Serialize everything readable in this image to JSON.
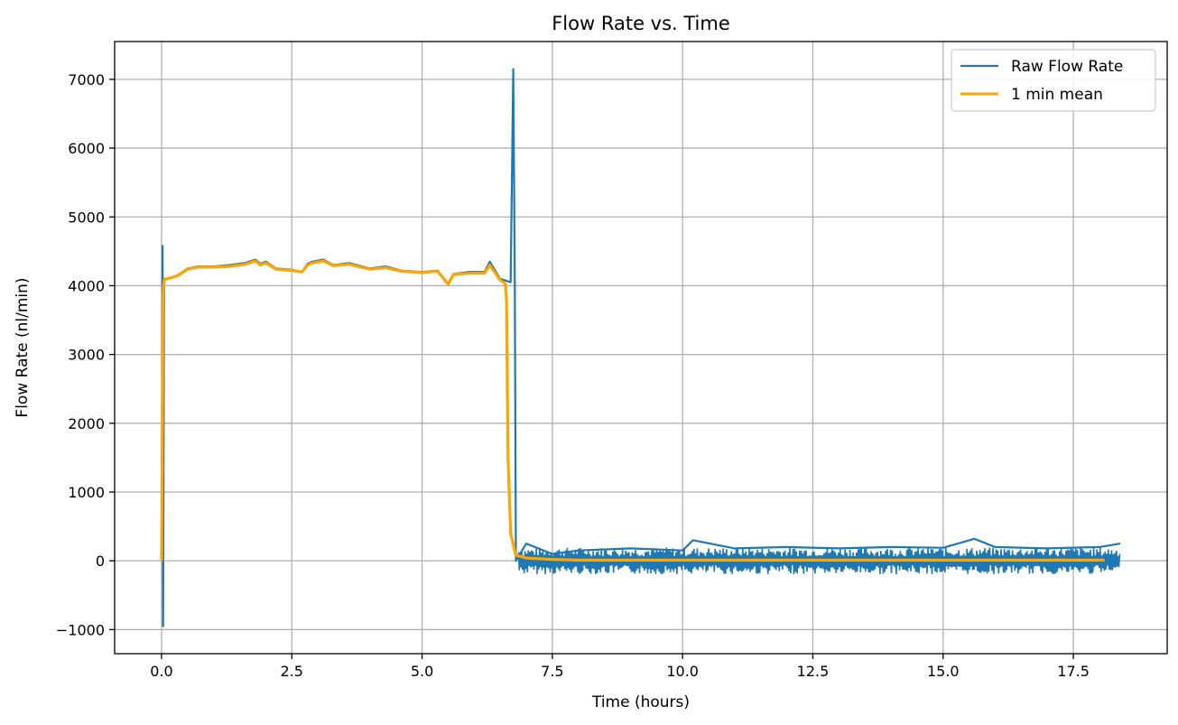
{
  "chart_data": {
    "type": "line",
    "title": "Flow Rate vs. Time",
    "xlabel": "Time (hours)",
    "ylabel": "Flow Rate (nl/min)",
    "xlim": [
      -0.9,
      19.3
    ],
    "ylim": [
      -1350,
      7550
    ],
    "xticks": [
      0.0,
      2.5,
      5.0,
      7.5,
      10.0,
      12.5,
      15.0,
      17.5
    ],
    "xtick_labels": [
      "0.0",
      "2.5",
      "5.0",
      "7.5",
      "10.0",
      "12.5",
      "15.0",
      "17.5"
    ],
    "yticks": [
      -1000,
      0,
      1000,
      2000,
      3000,
      4000,
      5000,
      6000,
      7000
    ],
    "ytick_labels": [
      "−1000",
      "0",
      "1000",
      "2000",
      "3000",
      "4000",
      "5000",
      "6000",
      "7000"
    ],
    "grid": true,
    "legend_position": "top-right",
    "series": [
      {
        "name": "Raw Flow Rate",
        "color": "#1f77b4",
        "x": [
          0.0,
          0.02,
          0.03,
          0.05,
          0.1,
          0.3,
          0.5,
          0.7,
          1.0,
          1.3,
          1.6,
          1.8,
          1.9,
          2.0,
          2.2,
          2.5,
          2.7,
          2.8,
          2.9,
          3.1,
          3.3,
          3.6,
          4.0,
          4.3,
          4.6,
          5.0,
          5.3,
          5.5,
          5.6,
          5.9,
          6.2,
          6.3,
          6.5,
          6.7,
          6.75,
          6.78,
          6.8,
          7.0,
          7.5,
          8.0,
          9.0,
          10.0,
          10.2,
          11.0,
          12.0,
          13.0,
          14.0,
          15.0,
          15.6,
          16.0,
          17.0,
          18.0,
          18.4
        ],
        "y": [
          0,
          4580,
          -950,
          4100,
          4100,
          4150,
          4250,
          4280,
          4280,
          4300,
          4330,
          4380,
          4320,
          4350,
          4250,
          4230,
          4200,
          4320,
          4350,
          4380,
          4300,
          4330,
          4250,
          4280,
          4220,
          4200,
          4220,
          4030,
          4170,
          4200,
          4200,
          4350,
          4100,
          4050,
          7150,
          4050,
          0,
          250,
          100,
          150,
          180,
          150,
          300,
          180,
          200,
          180,
          200,
          190,
          320,
          200,
          180,
          200,
          250
        ],
        "band": {
          "x_start": 6.85,
          "x_end": 18.4,
          "center": 0,
          "amplitude": 260
        }
      },
      {
        "name": "1 min mean",
        "color": "#ffa500",
        "x": [
          0.0,
          0.03,
          0.05,
          0.1,
          0.3,
          0.5,
          0.7,
          1.0,
          1.3,
          1.6,
          1.8,
          1.9,
          2.0,
          2.2,
          2.5,
          2.7,
          2.8,
          2.9,
          3.1,
          3.3,
          3.6,
          4.0,
          4.3,
          4.6,
          5.0,
          5.3,
          5.5,
          5.6,
          5.9,
          6.2,
          6.3,
          6.5,
          6.6,
          6.62,
          6.65,
          6.7,
          6.8,
          7.0,
          7.5,
          8.0,
          10.0,
          12.0,
          14.0,
          16.0,
          18.1
        ],
        "y": [
          0,
          3900,
          4080,
          4100,
          4140,
          4240,
          4270,
          4270,
          4280,
          4310,
          4360,
          4300,
          4330,
          4240,
          4220,
          4200,
          4300,
          4330,
          4360,
          4290,
          4310,
          4240,
          4260,
          4210,
          4190,
          4210,
          4020,
          4160,
          4180,
          4180,
          4300,
          4080,
          4030,
          3800,
          1500,
          400,
          80,
          40,
          20,
          10,
          10,
          10,
          10,
          10,
          10
        ]
      }
    ]
  }
}
